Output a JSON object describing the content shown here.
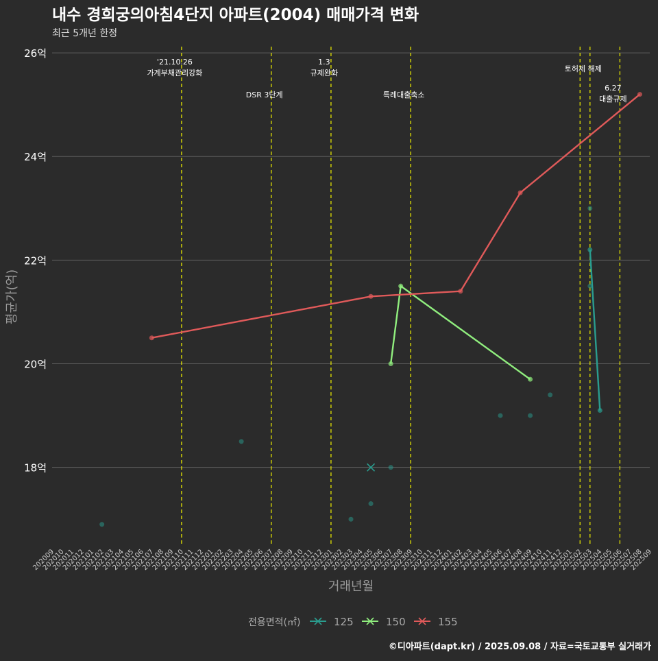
{
  "chart_data": {
    "type": "line",
    "title": "내수 경희궁의아침4단지 아파트(2004) 매매가격 변화",
    "subtitle": "최근 5개년 한정",
    "xlabel": "거래년월",
    "ylabel": "평균가(억)",
    "ylim": [
      16.5,
      26.2
    ],
    "y_ticks": [
      18,
      20,
      22,
      24,
      26
    ],
    "y_tick_labels": [
      "18억",
      "20억",
      "22억",
      "24억",
      "26억"
    ],
    "x_months": [
      "202009",
      "202010",
      "202011",
      "202012",
      "202101",
      "202102",
      "202103",
      "202104",
      "202105",
      "202106",
      "202107",
      "202108",
      "202109",
      "202110",
      "202111",
      "202112",
      "202201",
      "202202",
      "202203",
      "202204",
      "202205",
      "202206",
      "202207",
      "202208",
      "202209",
      "202210",
      "202211",
      "202212",
      "202301",
      "202302",
      "202303",
      "202304",
      "202305",
      "202306",
      "202307",
      "202308",
      "202309",
      "202310",
      "202311",
      "202312",
      "202401",
      "202402",
      "202403",
      "202404",
      "202405",
      "202406",
      "202407",
      "202408",
      "202409",
      "202410",
      "202411",
      "202412",
      "202501",
      "202502",
      "202503",
      "202504",
      "202505",
      "202506",
      "202507",
      "202508",
      "202509"
    ],
    "legend_title": "전용면적(㎡)",
    "series": [
      {
        "name": "125",
        "color": "#2a9d8f",
        "marker_x": true,
        "line": [
          [
            "202503",
            22.2
          ],
          [
            "202504",
            19.1
          ]
        ],
        "line_points": [
          [
            "202503",
            22.2
          ],
          [
            "202504",
            19.1
          ]
        ],
        "x_markers": [
          [
            "202305",
            18.0
          ]
        ],
        "scatter": [
          [
            "202102",
            16.9
          ],
          [
            "202204",
            18.5
          ],
          [
            "202303",
            17.0
          ],
          [
            "202305",
            17.3
          ],
          [
            "202307",
            18.0
          ],
          [
            "202406",
            19.0
          ],
          [
            "202409",
            19.0
          ],
          [
            "202411",
            19.4
          ],
          [
            "202503",
            23.0
          ],
          [
            "202503",
            21.5
          ]
        ]
      },
      {
        "name": "150",
        "color": "#90ee7e",
        "line": [
          [
            "202307",
            20.0
          ],
          [
            "202308",
            21.5
          ],
          [
            "202409",
            19.7
          ]
        ],
        "line_points": [
          [
            "202307",
            20.0
          ],
          [
            "202308",
            21.5
          ],
          [
            "202409",
            19.7
          ]
        ],
        "scatter": []
      },
      {
        "name": "155",
        "color": "#e05a5a",
        "line": [
          [
            "202107",
            20.5
          ],
          [
            "202305",
            21.3
          ],
          [
            "202402",
            21.4
          ],
          [
            "202408",
            23.3
          ],
          [
            "202508",
            25.2
          ]
        ],
        "line_points": [
          [
            "202107",
            20.5
          ],
          [
            "202305",
            21.3
          ],
          [
            "202402",
            21.4
          ],
          [
            "202408",
            23.3
          ],
          [
            "202508",
            25.2
          ]
        ],
        "scatter": []
      }
    ],
    "events": [
      {
        "month": "202110",
        "label_lines": [
          "'21.10.26",
          "가계부채관리강화"
        ]
      },
      {
        "month": "202207",
        "label_lines": [
          "DSR 3단계"
        ]
      },
      {
        "month": "202301",
        "label_lines": [
          "1.3",
          "규제완화"
        ]
      },
      {
        "month": "202309",
        "label_lines": [
          "특례대출축소"
        ]
      },
      {
        "month": "202502",
        "label_lines": []
      },
      {
        "month": "202503",
        "label_lines": [
          "토허제 해제"
        ]
      },
      {
        "month": "202506",
        "label_lines": [
          "6.27",
          "대출규제"
        ]
      }
    ],
    "grid": true,
    "legend_position": "bottom"
  },
  "caption": "©디아파트(dapt.kr) / 2025.09.08 / 자료=국토교통부 실거래가"
}
